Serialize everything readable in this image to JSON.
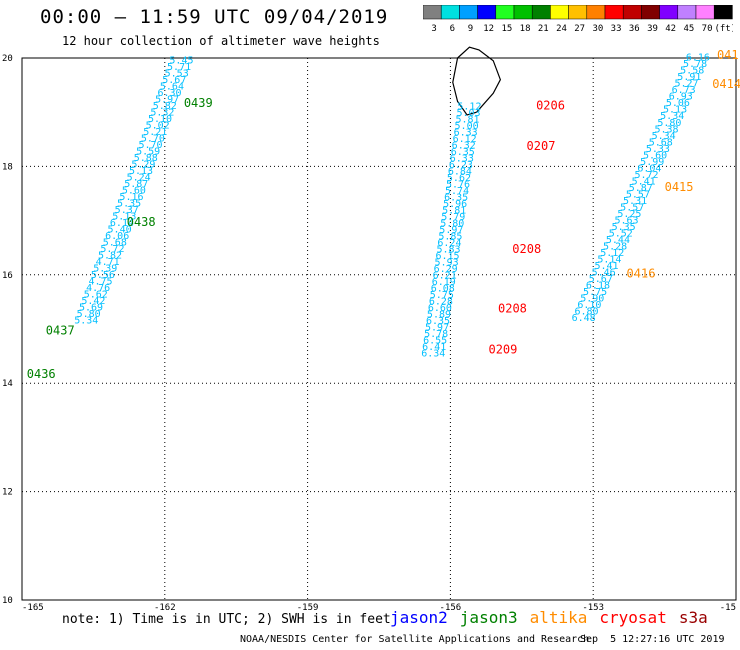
{
  "title": "00:00 – 11:59 UTC 09/04/2019",
  "subtitle": "12 hour collection of altimeter wave heights",
  "colorbar": {
    "colors": [
      "#808080",
      "#00e0e0",
      "#00a0ff",
      "#0000ff",
      "#20ff20",
      "#00c000",
      "#008000",
      "#ffff00",
      "#ffc000",
      "#ff8000",
      "#ff0000",
      "#c00000",
      "#800000",
      "#8000ff",
      "#c080ff",
      "#ff80ff",
      "#000000"
    ],
    "ticks": [
      "3",
      "6",
      "9",
      "12",
      "15",
      "18",
      "21",
      "24",
      "27",
      "30",
      "33",
      "36",
      "39",
      "42",
      "45",
      "70",
      "(ft)"
    ]
  },
  "axes": {
    "x_ticks": [
      "-165",
      "-162",
      "-159",
      "-156",
      "-153",
      "-15"
    ],
    "y_ticks": [
      "20",
      "18",
      "16",
      "14",
      "12",
      "10"
    ]
  },
  "colors": {
    "jason3": "#008000",
    "altika": "#ff8c00",
    "cryosat": "#ff0000",
    "s3a": "#990000",
    "jason2": "#0000ff",
    "swh": "#00bfff"
  },
  "tracks": [
    {
      "id": "track-west",
      "values": [
        {
          "lon": -161.65,
          "lat": 19.9,
          "swh": "5.45"
        },
        {
          "lon": -161.7,
          "lat": 19.78,
          "swh": "5.71"
        },
        {
          "lon": -161.75,
          "lat": 19.66,
          "swh": "5.53"
        },
        {
          "lon": -161.8,
          "lat": 19.54,
          "swh": "5.67"
        },
        {
          "lon": -161.85,
          "lat": 19.42,
          "swh": "5.64"
        },
        {
          "lon": -161.9,
          "lat": 19.3,
          "swh": "6.30"
        },
        {
          "lon": -161.95,
          "lat": 19.18,
          "swh": "5.97"
        },
        {
          "lon": -162.0,
          "lat": 19.06,
          "swh": "5.82"
        },
        {
          "lon": -162.05,
          "lat": 18.94,
          "swh": "5.32"
        },
        {
          "lon": -162.1,
          "lat": 18.82,
          "swh": "5.10"
        },
        {
          "lon": -162.15,
          "lat": 18.7,
          "swh": "5.02"
        },
        {
          "lon": -162.2,
          "lat": 18.58,
          "swh": "5.21"
        },
        {
          "lon": -162.25,
          "lat": 18.46,
          "swh": "5.70"
        },
        {
          "lon": -162.3,
          "lat": 18.34,
          "swh": "5.70"
        },
        {
          "lon": -162.35,
          "lat": 18.22,
          "swh": "5.59"
        },
        {
          "lon": -162.4,
          "lat": 18.1,
          "swh": "5.88"
        },
        {
          "lon": -162.45,
          "lat": 17.98,
          "swh": "5.29"
        },
        {
          "lon": -162.5,
          "lat": 17.86,
          "swh": "5.13"
        },
        {
          "lon": -162.55,
          "lat": 17.74,
          "swh": "5.24"
        },
        {
          "lon": -162.6,
          "lat": 17.62,
          "swh": "5.87"
        },
        {
          "lon": -162.65,
          "lat": 17.5,
          "swh": "5.60"
        },
        {
          "lon": -162.7,
          "lat": 17.38,
          "swh": "5.16"
        },
        {
          "lon": -162.75,
          "lat": 17.26,
          "swh": "5.35"
        },
        {
          "lon": -162.8,
          "lat": 17.14,
          "swh": "5.37"
        },
        {
          "lon": -162.85,
          "lat": 17.02,
          "swh": "5.13"
        },
        {
          "lon": -162.9,
          "lat": 16.9,
          "swh": "6.14"
        },
        {
          "lon": -162.95,
          "lat": 16.78,
          "swh": "5.40"
        },
        {
          "lon": -163.0,
          "lat": 16.66,
          "swh": "6.06"
        },
        {
          "lon": -163.05,
          "lat": 16.54,
          "swh": "5.68"
        },
        {
          "lon": -163.1,
          "lat": 16.42,
          "swh": "5.72"
        },
        {
          "lon": -163.15,
          "lat": 16.3,
          "swh": "5.82"
        },
        {
          "lon": -163.2,
          "lat": 16.18,
          "swh": "4.71"
        },
        {
          "lon": -163.25,
          "lat": 16.06,
          "swh": "5.39"
        },
        {
          "lon": -163.3,
          "lat": 15.94,
          "swh": "5.56"
        },
        {
          "lon": -163.35,
          "lat": 15.82,
          "swh": "4.75"
        },
        {
          "lon": -163.4,
          "lat": 15.7,
          "swh": "4.76"
        },
        {
          "lon": -163.45,
          "lat": 15.58,
          "swh": "5.62"
        },
        {
          "lon": -163.5,
          "lat": 15.46,
          "swh": "5.42"
        },
        {
          "lon": -163.55,
          "lat": 15.34,
          "swh": "5.69"
        },
        {
          "lon": -163.6,
          "lat": 15.22,
          "swh": "5.80"
        },
        {
          "lon": -163.65,
          "lat": 15.1,
          "swh": "5.34"
        }
      ]
    },
    {
      "id": "track-central",
      "values": [
        {
          "lon": -155.6,
          "lat": 19.05,
          "swh": "5.12"
        },
        {
          "lon": -155.62,
          "lat": 18.93,
          "swh": "5.03"
        },
        {
          "lon": -155.64,
          "lat": 18.81,
          "swh": "5.81"
        },
        {
          "lon": -155.66,
          "lat": 18.69,
          "swh": "5.00"
        },
        {
          "lon": -155.68,
          "lat": 18.57,
          "swh": "6.33"
        },
        {
          "lon": -155.7,
          "lat": 18.45,
          "swh": "6.12"
        },
        {
          "lon": -155.72,
          "lat": 18.33,
          "swh": "6.32"
        },
        {
          "lon": -155.74,
          "lat": 18.21,
          "swh": "6.35"
        },
        {
          "lon": -155.76,
          "lat": 18.09,
          "swh": "6.33"
        },
        {
          "lon": -155.78,
          "lat": 17.97,
          "swh": "6.23"
        },
        {
          "lon": -155.8,
          "lat": 17.85,
          "swh": "6.84"
        },
        {
          "lon": -155.82,
          "lat": 17.73,
          "swh": "5.62"
        },
        {
          "lon": -155.84,
          "lat": 17.61,
          "swh": "5.76"
        },
        {
          "lon": -155.86,
          "lat": 17.49,
          "swh": "5.74"
        },
        {
          "lon": -155.88,
          "lat": 17.37,
          "swh": "6.35"
        },
        {
          "lon": -155.9,
          "lat": 17.25,
          "swh": "5.96"
        },
        {
          "lon": -155.92,
          "lat": 17.13,
          "swh": "5.81"
        },
        {
          "lon": -155.94,
          "lat": 17.01,
          "swh": "5.79"
        },
        {
          "lon": -155.96,
          "lat": 16.89,
          "swh": "5.80"
        },
        {
          "lon": -155.98,
          "lat": 16.77,
          "swh": "5.97"
        },
        {
          "lon": -156.0,
          "lat": 16.65,
          "swh": "5.85"
        },
        {
          "lon": -156.02,
          "lat": 16.53,
          "swh": "6.24"
        },
        {
          "lon": -156.04,
          "lat": 16.41,
          "swh": "5.83"
        },
        {
          "lon": -156.06,
          "lat": 16.29,
          "swh": "6.15"
        },
        {
          "lon": -156.08,
          "lat": 16.17,
          "swh": "5.93"
        },
        {
          "lon": -156.1,
          "lat": 16.05,
          "swh": "6.29"
        },
        {
          "lon": -156.12,
          "lat": 15.93,
          "swh": "6.21"
        },
        {
          "lon": -156.14,
          "lat": 15.81,
          "swh": "6.19"
        },
        {
          "lon": -156.16,
          "lat": 15.69,
          "swh": "6.08"
        },
        {
          "lon": -156.18,
          "lat": 15.57,
          "swh": "5.75"
        },
        {
          "lon": -156.2,
          "lat": 15.45,
          "swh": "6.28"
        },
        {
          "lon": -156.22,
          "lat": 15.33,
          "swh": "6.60"
        },
        {
          "lon": -156.24,
          "lat": 15.21,
          "swh": "5.89"
        },
        {
          "lon": -156.26,
          "lat": 15.09,
          "swh": "6.35"
        },
        {
          "lon": -156.28,
          "lat": 14.97,
          "swh": "5.97"
        },
        {
          "lon": -156.3,
          "lat": 14.85,
          "swh": "5.78"
        },
        {
          "lon": -156.32,
          "lat": 14.73,
          "swh": "6.55"
        },
        {
          "lon": -156.34,
          "lat": 14.61,
          "swh": "6.41"
        },
        {
          "lon": -156.36,
          "lat": 14.49,
          "swh": "6.34"
        }
      ]
    },
    {
      "id": "track-east",
      "values": [
        {
          "lon": -150.8,
          "lat": 19.95,
          "swh": "6.16"
        },
        {
          "lon": -150.86,
          "lat": 19.83,
          "swh": "5.78"
        },
        {
          "lon": -150.92,
          "lat": 19.71,
          "swh": "5.58"
        },
        {
          "lon": -150.98,
          "lat": 19.59,
          "swh": "5.91"
        },
        {
          "lon": -151.04,
          "lat": 19.47,
          "swh": "5.27"
        },
        {
          "lon": -151.1,
          "lat": 19.35,
          "swh": "6.73"
        },
        {
          "lon": -151.16,
          "lat": 19.23,
          "swh": "6.93"
        },
        {
          "lon": -151.22,
          "lat": 19.11,
          "swh": "5.06"
        },
        {
          "lon": -151.28,
          "lat": 18.99,
          "swh": "5.13"
        },
        {
          "lon": -151.34,
          "lat": 18.87,
          "swh": "5.34"
        },
        {
          "lon": -151.4,
          "lat": 18.75,
          "swh": "5.80"
        },
        {
          "lon": -151.46,
          "lat": 18.63,
          "swh": "5.38"
        },
        {
          "lon": -151.52,
          "lat": 18.51,
          "swh": "5.34"
        },
        {
          "lon": -151.58,
          "lat": 18.39,
          "swh": "5.68"
        },
        {
          "lon": -151.64,
          "lat": 18.27,
          "swh": "5.33"
        },
        {
          "lon": -151.7,
          "lat": 18.15,
          "swh": "5.60"
        },
        {
          "lon": -151.76,
          "lat": 18.03,
          "swh": "5.99"
        },
        {
          "lon": -151.82,
          "lat": 17.91,
          "swh": "6.04"
        },
        {
          "lon": -151.88,
          "lat": 17.79,
          "swh": "5.72"
        },
        {
          "lon": -151.94,
          "lat": 17.67,
          "swh": "5.41"
        },
        {
          "lon": -152.0,
          "lat": 17.55,
          "swh": "5.87"
        },
        {
          "lon": -152.06,
          "lat": 17.43,
          "swh": "5.57"
        },
        {
          "lon": -152.12,
          "lat": 17.31,
          "swh": "5.31"
        },
        {
          "lon": -152.18,
          "lat": 17.19,
          "swh": "5.57"
        },
        {
          "lon": -152.24,
          "lat": 17.07,
          "swh": "5.25"
        },
        {
          "lon": -152.3,
          "lat": 16.95,
          "swh": "5.63"
        },
        {
          "lon": -152.36,
          "lat": 16.83,
          "swh": "5.35"
        },
        {
          "lon": -152.42,
          "lat": 16.71,
          "swh": "5.52"
        },
        {
          "lon": -152.48,
          "lat": 16.59,
          "swh": "5.44"
        },
        {
          "lon": -152.54,
          "lat": 16.47,
          "swh": "5.28"
        },
        {
          "lon": -152.6,
          "lat": 16.35,
          "swh": "5.12"
        },
        {
          "lon": -152.66,
          "lat": 16.23,
          "swh": "5.14"
        },
        {
          "lon": -152.72,
          "lat": 16.11,
          "swh": "5.41"
        },
        {
          "lon": -152.78,
          "lat": 15.99,
          "swh": "5.46"
        },
        {
          "lon": -152.84,
          "lat": 15.87,
          "swh": "5.67"
        },
        {
          "lon": -152.9,
          "lat": 15.75,
          "swh": "6.18"
        },
        {
          "lon": -152.96,
          "lat": 15.63,
          "swh": "5.75"
        },
        {
          "lon": -153.02,
          "lat": 15.51,
          "swh": "5.90"
        },
        {
          "lon": -153.08,
          "lat": 15.39,
          "swh": "6.10"
        },
        {
          "lon": -153.14,
          "lat": 15.27,
          "swh": "6.80"
        },
        {
          "lon": -153.2,
          "lat": 15.15,
          "swh": "6.48"
        }
      ]
    }
  ],
  "time_labels": [
    {
      "text": "0439",
      "lon": -161.6,
      "lat": 19.1,
      "color": "#008000"
    },
    {
      "text": "0438",
      "lon": -162.8,
      "lat": 16.9,
      "color": "#008000"
    },
    {
      "text": "0437",
      "lon": -164.5,
      "lat": 14.9,
      "color": "#008000"
    },
    {
      "text": "0436",
      "lon": -164.9,
      "lat": 14.1,
      "color": "#008000"
    },
    {
      "text": "0206",
      "lon": -154.2,
      "lat": 19.05,
      "color": "#ff0000"
    },
    {
      "text": "0207",
      "lon": -154.4,
      "lat": 18.3,
      "color": "#ff0000"
    },
    {
      "text": "0208",
      "lon": -154.7,
      "lat": 16.4,
      "color": "#ff0000"
    },
    {
      "text": "0208",
      "lon": -155.0,
      "lat": 15.3,
      "color": "#ff0000"
    },
    {
      "text": "0209",
      "lon": -155.2,
      "lat": 14.55,
      "color": "#ff0000"
    },
    {
      "text": "041",
      "lon": -150.4,
      "lat": 19.98,
      "color": "#ff8c00"
    },
    {
      "text": "0414",
      "lon": -150.5,
      "lat": 19.45,
      "color": "#ff8c00"
    },
    {
      "text": "0415",
      "lon": -151.5,
      "lat": 17.55,
      "color": "#ff8c00"
    },
    {
      "text": "0416",
      "lon": -152.3,
      "lat": 15.95,
      "color": "#ff8c00"
    }
  ],
  "note": "note: 1) Time is in UTC; 2) SWH is in feet",
  "legend": [
    {
      "label": "jason2",
      "color": "#0000ff"
    },
    {
      "label": "jason3",
      "color": "#008000"
    },
    {
      "label": "altika",
      "color": "#ff8c00"
    },
    {
      "label": "cryosat",
      "color": "#ff0000"
    },
    {
      "label": "s3a",
      "color": "#990000"
    }
  ],
  "credit": "NOAA/NESDIS Center for Satellite Applications and Research",
  "timestamp": "Sep  5 12:27:16 UTC 2019"
}
